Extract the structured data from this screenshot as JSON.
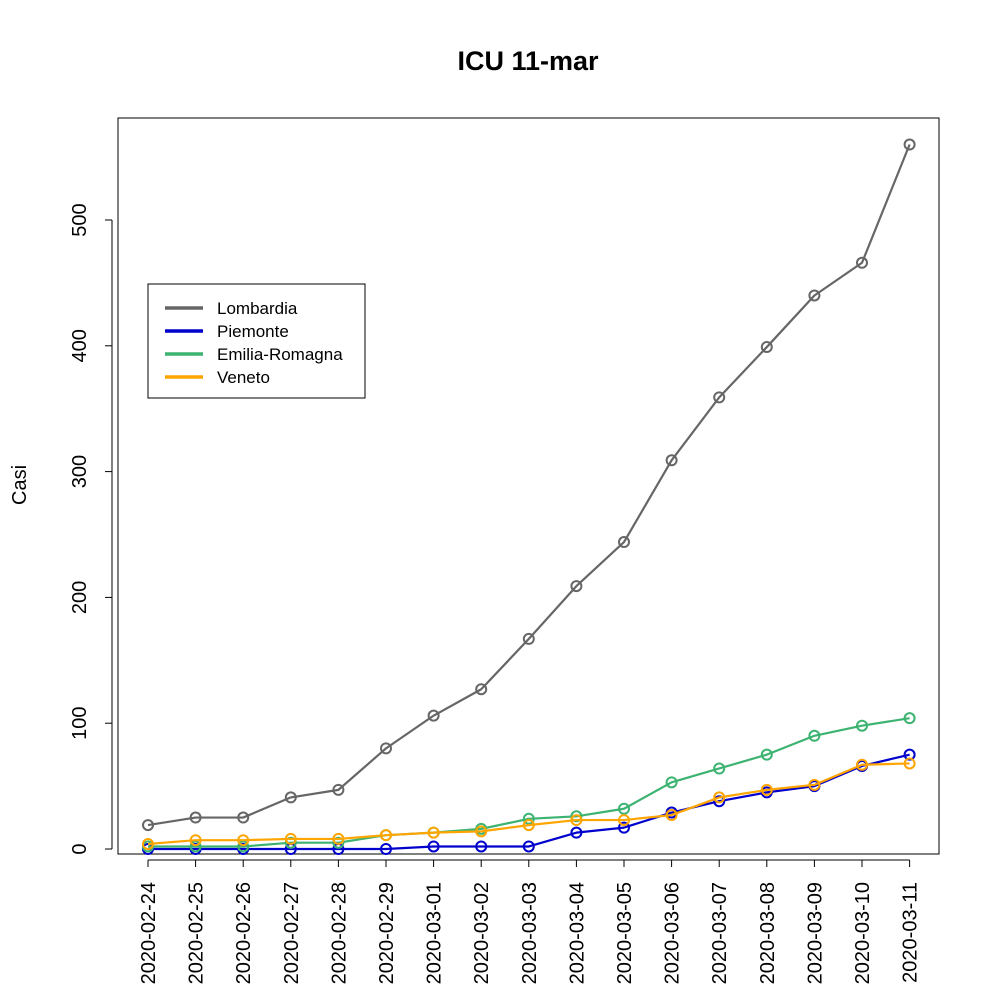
{
  "chart_data": {
    "type": "line",
    "title": "ICU 11-mar",
    "xlabel": "",
    "ylabel": "Casi",
    "categories": [
      "2020-02-24",
      "2020-02-25",
      "2020-02-26",
      "2020-02-27",
      "2020-02-28",
      "2020-02-29",
      "2020-03-01",
      "2020-03-02",
      "2020-03-03",
      "2020-03-04",
      "2020-03-05",
      "2020-03-06",
      "2020-03-07",
      "2020-03-08",
      "2020-03-09",
      "2020-03-10",
      "2020-03-11"
    ],
    "ylim": [
      0,
      580
    ],
    "yticks": [
      0,
      100,
      200,
      300,
      400,
      500
    ],
    "grid": false,
    "legend_position": "top-left",
    "series": [
      {
        "name": "Lombardia",
        "color": "#666666",
        "values": [
          19,
          25,
          25,
          41,
          47,
          80,
          106,
          127,
          167,
          209,
          244,
          309,
          359,
          399,
          440,
          466,
          560
        ]
      },
      {
        "name": "Piemonte",
        "color": "#0000cd",
        "values": [
          0,
          0,
          0,
          0,
          0,
          0,
          2,
          2,
          2,
          13,
          17,
          29,
          38,
          45,
          50,
          66,
          75
        ]
      },
      {
        "name": "Emilia-Romagna",
        "color": "#3cb371",
        "values": [
          2,
          2,
          2,
          5,
          5,
          11,
          13,
          16,
          24,
          26,
          32,
          53,
          64,
          75,
          90,
          98,
          104
        ]
      },
      {
        "name": "Veneto",
        "color": "#ffa500",
        "values": [
          4,
          7,
          7,
          8,
          8,
          11,
          13,
          14,
          19,
          23,
          23,
          27,
          41,
          47,
          51,
          67,
          68
        ]
      }
    ]
  }
}
